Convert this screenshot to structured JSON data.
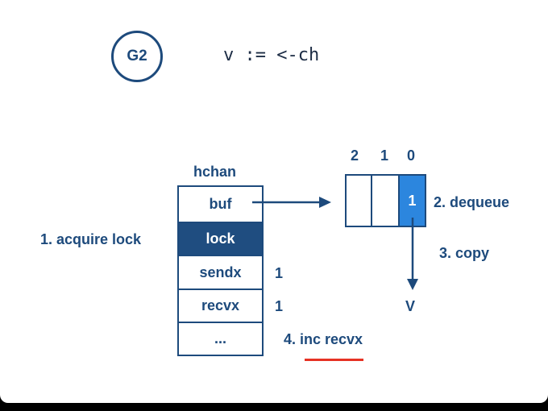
{
  "goroutine": {
    "label": "G2"
  },
  "code": {
    "statement": "v := <-ch"
  },
  "hchan": {
    "title": "hchan",
    "fields": {
      "buf": "buf",
      "lock": "lock",
      "sendx": "sendx",
      "recvx": "recvx",
      "more": "..."
    },
    "sendx_value": "1",
    "recvx_value": "1"
  },
  "buffer": {
    "indices": [
      "2",
      "1",
      "0"
    ],
    "slot0_value": "1"
  },
  "steps": {
    "acquire_lock": "1. acquire lock",
    "dequeue": "2. dequeue",
    "copy": "3. copy",
    "inc_recvx": "4. inc recvx"
  },
  "target_var": "V",
  "colors": {
    "navy": "#1d4a7c",
    "lock_fill": "#1f4d80",
    "slot_fill": "#2c86de",
    "underline": "#e63224"
  }
}
